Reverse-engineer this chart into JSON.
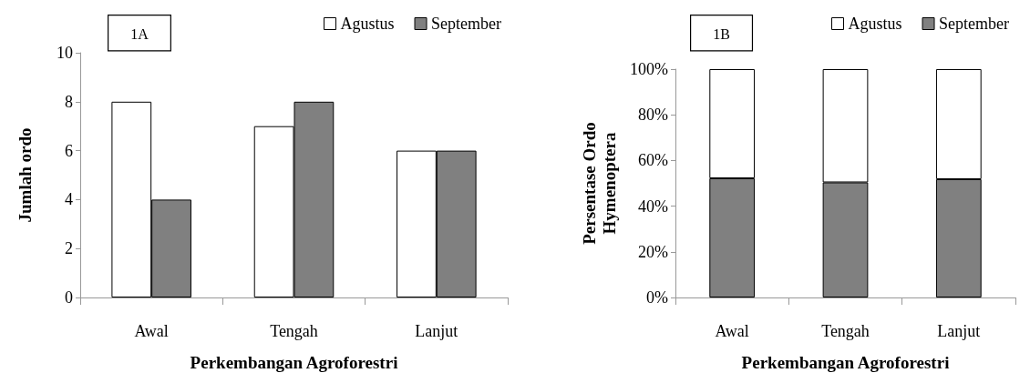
{
  "chart_data": [
    {
      "type": "bar",
      "annotations": [
        "1A"
      ],
      "xlabel": "Perkembangan Agroforestri",
      "ylabel": "Jumlah ordo",
      "categories": [
        "Awal",
        "Tengah",
        "Lanjut"
      ],
      "series": [
        {
          "name": "Agustus",
          "color": "#ffffff",
          "values": [
            8,
            7,
            6
          ]
        },
        {
          "name": "September",
          "color": "#808080",
          "values": [
            4,
            8,
            6
          ]
        }
      ],
      "ylim": [
        0,
        10
      ],
      "yticks": [
        0,
        2,
        4,
        6,
        8,
        10
      ],
      "grid": false,
      "legend": "top right"
    },
    {
      "type": "bar",
      "stacked": true,
      "annotations": [
        "1B"
      ],
      "xlabel": "Perkembangan Agroforestri",
      "ylabel": "Persentase Ordo Hymenoptera",
      "categories": [
        "Awal",
        "Tengah",
        "Lanjut"
      ],
      "series": [
        {
          "name": "September",
          "color": "#808080",
          "values": [
            52.2,
            50.4,
            51.8
          ]
        },
        {
          "name": "Agustus",
          "color": "#ffffff",
          "values": [
            47.8,
            49.6,
            48.2
          ]
        }
      ],
      "ylim": [
        0,
        100
      ],
      "yticks": [
        {
          "value": 0,
          "label": "0%"
        },
        {
          "value": 20,
          "label": "20%"
        },
        {
          "value": 40,
          "label": "40%"
        },
        {
          "value": 60,
          "label": "60%"
        },
        {
          "value": 80,
          "label": "80%"
        },
        {
          "value": 100,
          "label": "100%"
        }
      ],
      "grid": false,
      "legend": "top right"
    }
  ]
}
